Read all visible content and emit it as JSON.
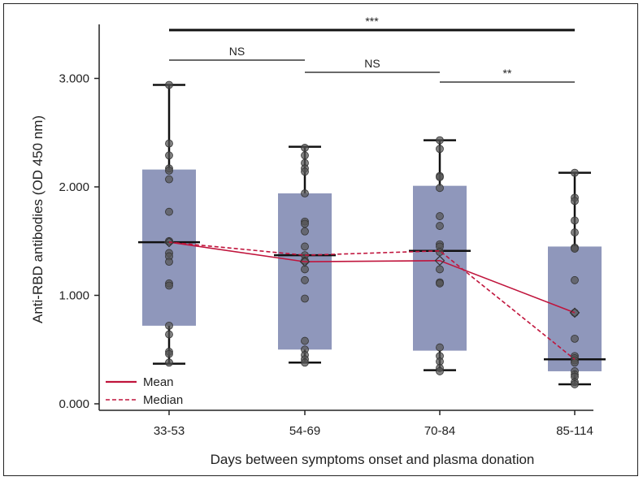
{
  "chart_data": {
    "type": "box",
    "xlabel": "Days between symptoms onset and plasma donation",
    "ylabel": "Anti-RBD antibodies (OD 450 nm)",
    "ylim": [
      0,
      3.5
    ],
    "yticks": [
      0,
      1,
      2,
      3
    ],
    "ytick_labels": [
      "0.000",
      "1.000",
      "2.000",
      "3.000"
    ],
    "categories": [
      "33-53",
      "54-69",
      "70-84",
      "85-114"
    ],
    "box_color": "#8f97bb",
    "line_color": "#c0143c",
    "boxes": [
      {
        "q1": 0.72,
        "median": 1.49,
        "q3": 2.16,
        "whisker_low": 0.37,
        "whisker_high": 2.94,
        "mean": 1.49
      },
      {
        "q1": 0.5,
        "median": 1.37,
        "q3": 1.94,
        "whisker_low": 0.38,
        "whisker_high": 2.37,
        "mean": 1.31
      },
      {
        "q1": 0.49,
        "median": 1.41,
        "q3": 2.01,
        "whisker_low": 0.31,
        "whisker_high": 2.43,
        "mean": 1.32
      },
      {
        "q1": 0.3,
        "median": 0.41,
        "q3": 1.45,
        "whisker_low": 0.18,
        "whisker_high": 2.13,
        "mean": 0.84
      }
    ],
    "points": [
      [
        2.94,
        2.4,
        2.29,
        2.17,
        2.15,
        2.07,
        1.77,
        1.5,
        1.39,
        1.36,
        1.31,
        1.11,
        1.09,
        0.72,
        0.64,
        0.48,
        0.46,
        0.38
      ],
      [
        2.36,
        2.29,
        2.22,
        2.17,
        2.14,
        1.94,
        1.68,
        1.66,
        1.59,
        1.45,
        1.37,
        1.32,
        1.24,
        1.14,
        0.97,
        0.58,
        0.5,
        0.45,
        0.41,
        0.38
      ],
      [
        2.43,
        2.35,
        2.1,
        2.09,
        1.99,
        1.73,
        1.64,
        1.47,
        1.45,
        1.4,
        1.24,
        1.12,
        1.11,
        0.52,
        0.44,
        0.39,
        0.33,
        0.3
      ],
      [
        2.13,
        1.9,
        1.87,
        1.69,
        1.58,
        1.44,
        1.43,
        1.14,
        0.84,
        0.6,
        0.44,
        0.42,
        0.4,
        0.38,
        0.3,
        0.27,
        0.25,
        0.2,
        0.18
      ]
    ],
    "series": [
      {
        "name": "Mean",
        "style": "solid",
        "values": [
          1.49,
          1.31,
          1.32,
          0.84
        ]
      },
      {
        "name": "Median",
        "style": "dashed",
        "values": [
          1.49,
          1.37,
          1.41,
          0.41
        ]
      }
    ],
    "significance": [
      {
        "from": 0,
        "to": 3,
        "label": "***",
        "level": 3.42
      },
      {
        "from": 0,
        "to": 1,
        "label": "NS",
        "level": 3.17
      },
      {
        "from": 1,
        "to": 2,
        "label": "NS",
        "level": 3.07
      },
      {
        "from": 2,
        "to": 3,
        "label": "**",
        "level": 2.97
      }
    ],
    "legend_position": "bottom-left"
  }
}
